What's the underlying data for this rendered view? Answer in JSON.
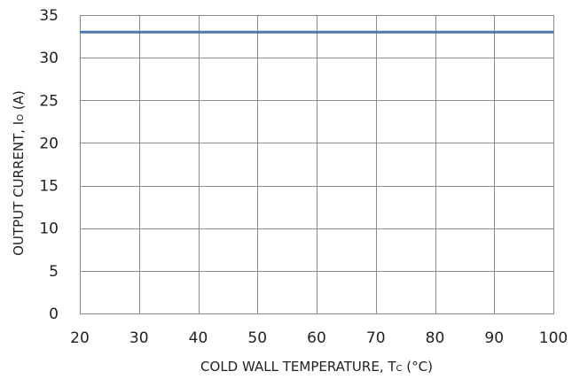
{
  "chart_data": {
    "type": "line",
    "title": "",
    "xlabel": {
      "main": "COLD WALL TEMPERATURE, T",
      "sub": "C",
      "suffix": " (°C)"
    },
    "ylabel": {
      "main": "OUTPUT CURRENT, I",
      "sub": "O",
      "suffix": " (A)"
    },
    "xlim": [
      20,
      100
    ],
    "ylim": [
      0,
      35
    ],
    "xticks": [
      20,
      30,
      40,
      50,
      60,
      70,
      80,
      90,
      100
    ],
    "yticks": [
      0,
      5,
      10,
      15,
      20,
      25,
      30,
      35
    ],
    "grid": true,
    "series": [
      {
        "x": [
          20,
          100
        ],
        "y": [
          33,
          33
        ],
        "color": "#4a78ae"
      }
    ]
  }
}
